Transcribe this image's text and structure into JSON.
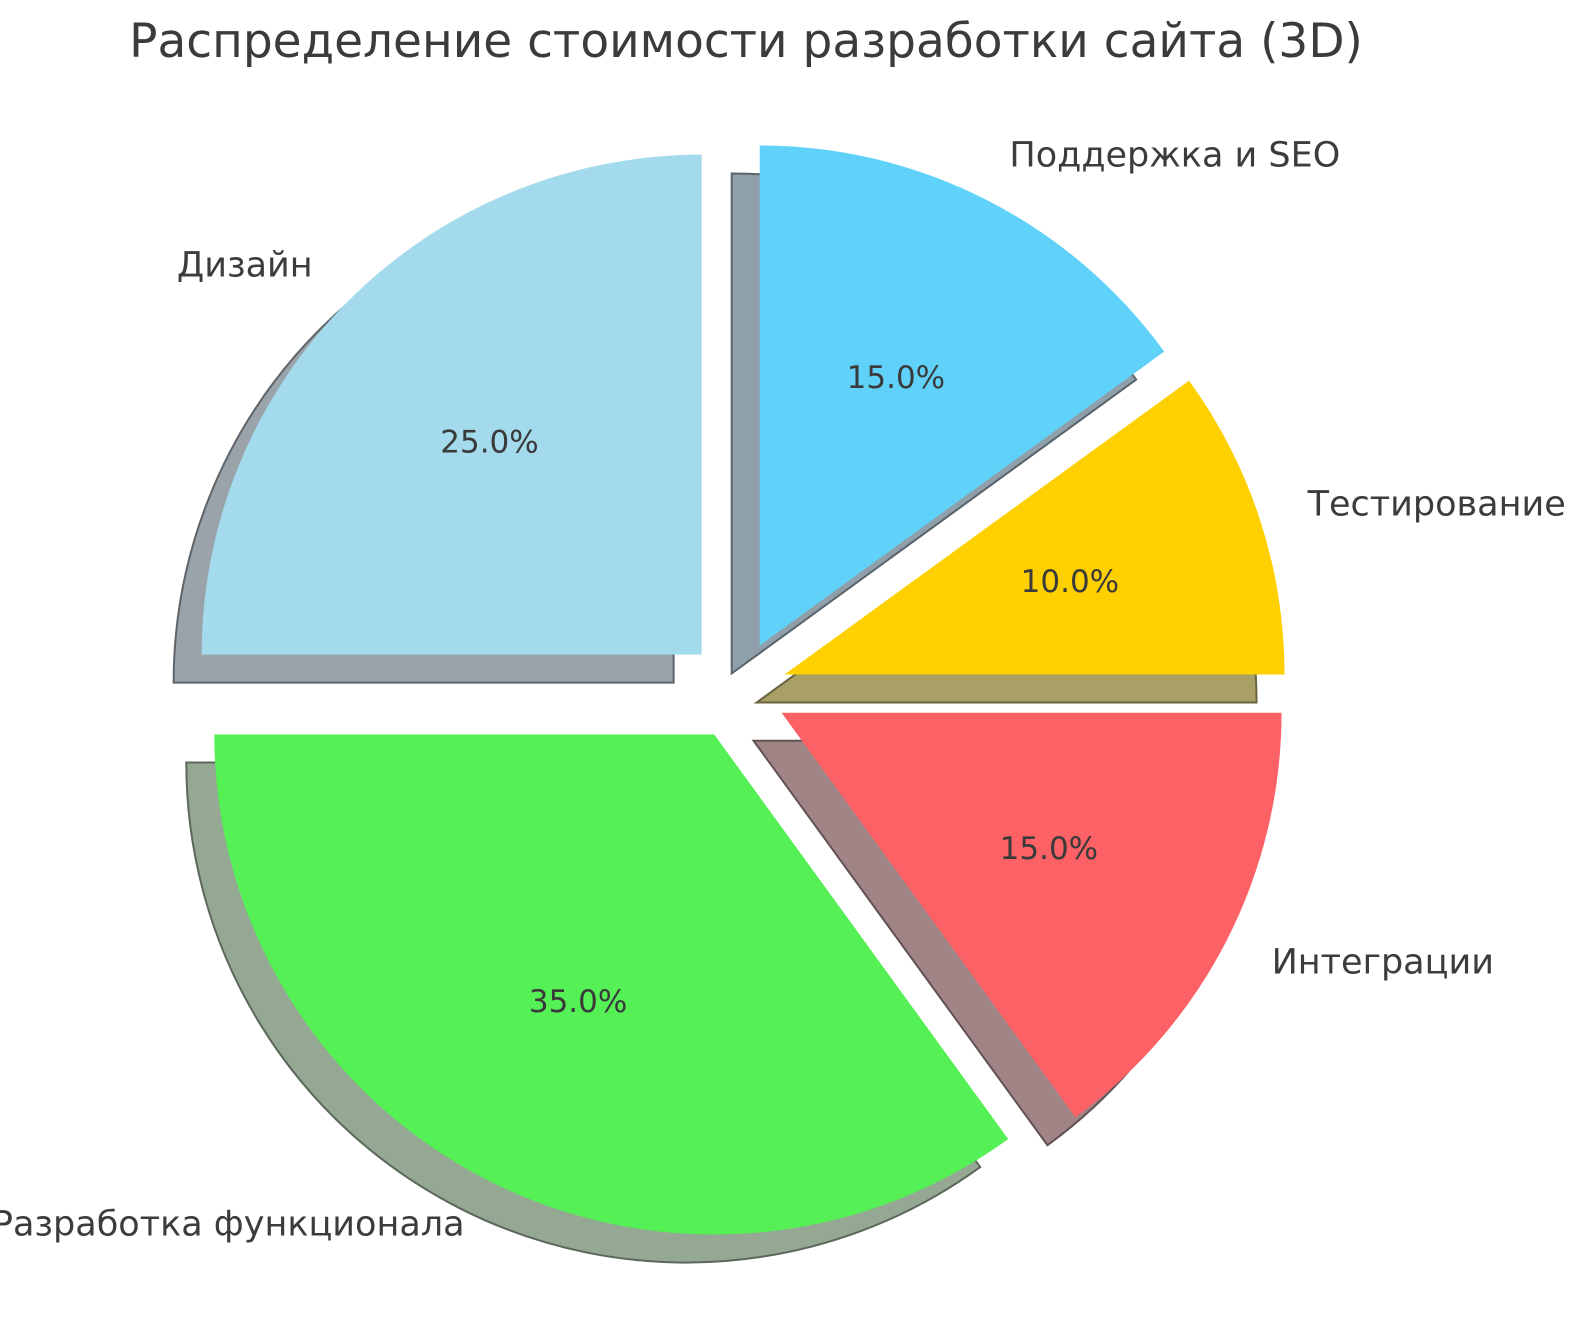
{
  "title": "Распределение стоимости разработки сайта (3D)",
  "chart_data": {
    "type": "pie",
    "title": "Распределение стоимости разработки сайта (3D)",
    "labels": [
      "Поддержка и SEO",
      "Тестирование",
      "Интеграции",
      "Разработка функционала",
      "Дизайн"
    ],
    "values": [
      15.0,
      10.0,
      15.0,
      35.0,
      25.0
    ],
    "pct_labels": [
      "15.0%",
      "10.0%",
      "15.0%",
      "35.0%",
      "25.0%"
    ],
    "colors": [
      "#60d2fa",
      "#ffd000",
      "#fc6165",
      "#55f055",
      "#a3dbec"
    ],
    "shadow_colors": [
      "#8fa0ab",
      "#a9a065",
      "#a08486",
      "#95a893",
      "#9aa2aa"
    ],
    "start_angle": 90,
    "direction": "clockwise",
    "explode": 0.1,
    "label_distance": 1.1,
    "pct_distance": 0.6,
    "effect": "3d-shadow",
    "background": "#ffffff",
    "title_color": "#3b3b3b",
    "label_color": "#3c3c3c",
    "pct_color": "#3a3a3a",
    "legend": "none"
  }
}
